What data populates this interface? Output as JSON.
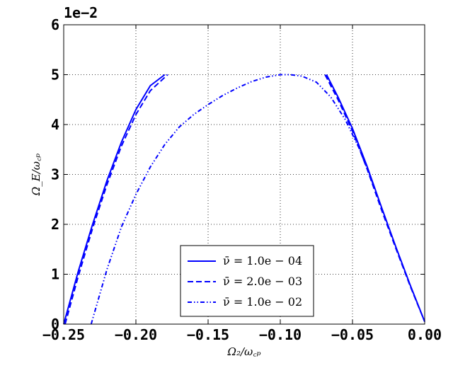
{
  "chart_data": {
    "type": "line",
    "xlabel": "Ω₂/ω꜀ₚ",
    "ylabel": "Ω_E/ω꜀ₚ",
    "xlim": [
      -0.25,
      0.0
    ],
    "ylim": [
      0,
      6
    ],
    "y_offset_text": "1e−2",
    "x_ticks": [
      -0.25,
      -0.2,
      -0.15,
      -0.1,
      -0.05,
      0.0
    ],
    "x_tick_labels": [
      "−0.25",
      "−0.20",
      "−0.15",
      "−0.10",
      "−0.05",
      "0.00"
    ],
    "y_ticks": [
      0,
      1,
      2,
      3,
      4,
      5,
      6
    ],
    "y_tick_labels": [
      "0",
      "1",
      "2",
      "3",
      "4",
      "5",
      "6"
    ],
    "grid": true,
    "legend_position": "lower-center",
    "series": [
      {
        "name": "ν̄ = 1.0e − 04",
        "style": "solid",
        "color": "#0000ff",
        "segments": [
          [
            [
              -0.25,
              0.0
            ],
            [
              -0.24,
              1.05
            ],
            [
              -0.23,
              2.0
            ],
            [
              -0.22,
              2.88
            ],
            [
              -0.21,
              3.65
            ],
            [
              -0.2,
              4.3
            ],
            [
              -0.19,
              4.78
            ],
            [
              -0.18,
              5.0
            ]
          ],
          [
            [
              -0.068,
              5.0
            ],
            [
              -0.06,
              4.55
            ],
            [
              -0.05,
              3.92
            ],
            [
              -0.04,
              3.17
            ],
            [
              -0.03,
              2.35
            ],
            [
              -0.02,
              1.55
            ],
            [
              -0.01,
              0.78
            ],
            [
              0.0,
              0.05
            ]
          ]
        ]
      },
      {
        "name": "ν̄ = 2.0e − 03",
        "style": "dashed",
        "color": "#0000ff",
        "segments": [
          [
            [
              -0.249,
              0.0
            ],
            [
              -0.24,
              0.95
            ],
            [
              -0.23,
              1.92
            ],
            [
              -0.22,
              2.8
            ],
            [
              -0.21,
              3.57
            ],
            [
              -0.2,
              4.2
            ],
            [
              -0.19,
              4.68
            ],
            [
              -0.178,
              5.0
            ]
          ],
          [
            [
              -0.069,
              5.0
            ],
            [
              -0.06,
              4.5
            ],
            [
              -0.05,
              3.87
            ],
            [
              -0.04,
              3.12
            ],
            [
              -0.03,
              2.3
            ],
            [
              -0.02,
              1.52
            ],
            [
              -0.01,
              0.76
            ],
            [
              0.0,
              0.05
            ]
          ]
        ]
      },
      {
        "name": "ν̄ = 1.0e − 02",
        "style": "dashdotdot",
        "color": "#0000ff",
        "segments": [
          [
            [
              -0.231,
              0.0
            ],
            [
              -0.22,
              1.1
            ],
            [
              -0.21,
              1.95
            ],
            [
              -0.2,
              2.6
            ],
            [
              -0.19,
              3.15
            ],
            [
              -0.18,
              3.6
            ],
            [
              -0.17,
              3.95
            ],
            [
              -0.16,
              4.2
            ],
            [
              -0.15,
              4.4
            ],
            [
              -0.14,
              4.58
            ],
            [
              -0.13,
              4.73
            ],
            [
              -0.12,
              4.86
            ],
            [
              -0.11,
              4.95
            ],
            [
              -0.1,
              5.0
            ],
            [
              -0.093,
              5.0
            ],
            [
              -0.085,
              4.97
            ],
            [
              -0.075,
              4.85
            ],
            [
              -0.065,
              4.55
            ],
            [
              -0.055,
              4.1
            ],
            [
              -0.045,
              3.5
            ],
            [
              -0.035,
              2.75
            ]
          ]
        ]
      }
    ]
  }
}
